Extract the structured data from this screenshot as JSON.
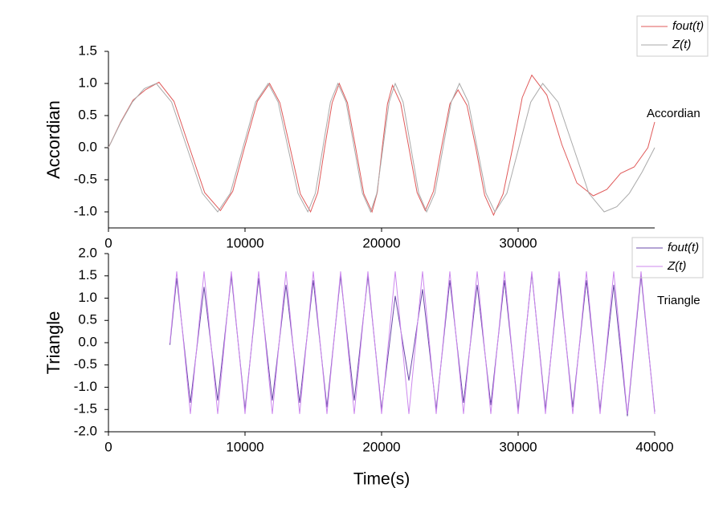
{
  "chart_data": [
    {
      "type": "line",
      "y_label": "Accordian",
      "annotation": "Accordian",
      "xlim": [
        0,
        40000
      ],
      "xticks": [
        0,
        10000,
        20000,
        30000
      ],
      "ylim": [
        -1.25,
        1.5
      ],
      "yticks": [
        {
          "value": -1,
          "label": "-1.0"
        },
        -0.5,
        {
          "value": 0,
          "label": "0.0"
        },
        0.5,
        {
          "value": 1,
          "label": "1.0"
        },
        1.5
      ],
      "series": [
        {
          "name": "fout(t)",
          "color": "#e05a5a",
          "x": [
            0,
            900,
            1800,
            2700,
            3700,
            4800,
            5900,
            7050,
            8200,
            9100,
            10000,
            10900,
            11800,
            12550,
            13300,
            14050,
            14800,
            15330,
            15850,
            16380,
            16900,
            17500,
            18100,
            18700,
            19300,
            19680,
            20050,
            20430,
            20800,
            21400,
            22000,
            22600,
            23200,
            23800,
            24400,
            25000,
            25600,
            26250,
            26900,
            27550,
            28200,
            28900,
            29600,
            30300,
            31000,
            32100,
            33200,
            34300,
            35500,
            36500,
            37500,
            38500,
            39500,
            40000
          ],
          "values": [
            0,
            0.4,
            0.74,
            0.9,
            1.02,
            0.72,
            0.02,
            -0.7,
            -0.98,
            -0.68,
            0.03,
            0.72,
            1.0,
            0.7,
            0.0,
            -0.72,
            -1.0,
            -0.7,
            0.02,
            0.7,
            1.0,
            0.7,
            0.0,
            -0.72,
            -1.0,
            -0.7,
            0.0,
            0.68,
            0.97,
            0.69,
            0.0,
            -0.7,
            -0.98,
            -0.68,
            0.02,
            0.68,
            0.9,
            0.66,
            0.0,
            -0.74,
            -1.05,
            -0.72,
            0.0,
            0.78,
            1.13,
            0.82,
            0.05,
            -0.55,
            -0.75,
            -0.65,
            -0.4,
            -0.3,
            0.0,
            0.4
          ]
        },
        {
          "name": "Z(t)",
          "color": "#aaaaaa",
          "x": [
            0,
            875,
            1750,
            2625,
            3500,
            4625,
            5750,
            6875,
            8000,
            8925,
            9850,
            10775,
            11700,
            12425,
            13150,
            13875,
            14600,
            15150,
            15700,
            16250,
            16800,
            17400,
            18000,
            18600,
            19200,
            19650,
            20100,
            20550,
            21000,
            21575,
            22150,
            22725,
            23300,
            23900,
            24500,
            25100,
            25700,
            26350,
            27000,
            27650,
            28300,
            29175,
            30050,
            30925,
            31800,
            32925,
            34050,
            35175,
            36300,
            37225,
            38150,
            39075,
            40000
          ],
          "values": [
            0,
            0.38,
            0.71,
            0.92,
            1,
            0.71,
            0,
            -0.71,
            -1,
            -0.71,
            0,
            0.71,
            1,
            0.71,
            0,
            -0.71,
            -1,
            -0.71,
            0,
            0.71,
            1,
            0.71,
            0,
            -0.71,
            -1,
            -0.71,
            0,
            0.71,
            1,
            0.71,
            0,
            -0.71,
            -1,
            -0.71,
            0,
            0.71,
            1,
            0.71,
            0,
            -0.71,
            -1,
            -0.71,
            0,
            0.71,
            1,
            0.71,
            0,
            -0.71,
            -1,
            -0.92,
            -0.71,
            -0.38,
            0
          ]
        }
      ]
    },
    {
      "type": "line",
      "y_label": "Triangle",
      "x_label": "Time(s)",
      "annotation": "Triangle",
      "xlim": [
        0,
        40000
      ],
      "xticks": [
        0,
        10000,
        20000,
        30000,
        40000
      ],
      "ylim": [
        -2,
        2
      ],
      "yticks": [
        {
          "value": -2,
          "label": "-2.0"
        },
        -1.5,
        {
          "value": -1,
          "label": "-1.0"
        },
        -0.5,
        {
          "value": 0,
          "label": "0.0"
        },
        0.5,
        {
          "value": 1,
          "label": "1.0"
        },
        1.5,
        {
          "value": 2,
          "label": "2.0"
        }
      ],
      "series": [
        {
          "name": "fout(t)",
          "color": "#6a4aa8",
          "x": [
            4500,
            5000,
            6000,
            7000,
            8000,
            9000,
            10000,
            11000,
            12000,
            13000,
            14000,
            15000,
            16000,
            17000,
            18000,
            19000,
            20000,
            21000,
            22000,
            23000,
            24000,
            25000,
            26000,
            27000,
            28000,
            29000,
            30000,
            31000,
            32000,
            33000,
            34000,
            35000,
            36000,
            37000,
            38000,
            39000,
            40000
          ],
          "values": [
            -0.05,
            1.45,
            -1.35,
            1.25,
            -1.3,
            1.5,
            -1.5,
            1.45,
            -1.3,
            1.3,
            -1.35,
            1.4,
            -1.45,
            1.5,
            -1.3,
            1.5,
            -1.5,
            1.05,
            -0.85,
            1.2,
            -1.5,
            1.4,
            -1.35,
            1.3,
            -1.4,
            1.4,
            -1.5,
            1.55,
            -1.5,
            1.45,
            -1.45,
            1.4,
            -1.5,
            1.3,
            -1.65,
            1.5,
            -1.55
          ]
        },
        {
          "name": "Z(t)",
          "color": "#cc88ee",
          "x": [
            4500,
            5000,
            6000,
            7000,
            8000,
            9000,
            10000,
            11000,
            12000,
            13000,
            14000,
            15000,
            16000,
            17000,
            18000,
            19000,
            20000,
            21000,
            22000,
            23000,
            24000,
            25000,
            26000,
            27000,
            28000,
            29000,
            30000,
            31000,
            32000,
            33000,
            34000,
            35000,
            36000,
            37000,
            38000,
            39000,
            40000
          ],
          "values": [
            0,
            1.6,
            -1.6,
            1.6,
            -1.6,
            1.6,
            -1.6,
            1.6,
            -1.6,
            1.6,
            -1.6,
            1.6,
            -1.6,
            1.6,
            -1.6,
            1.6,
            -1.6,
            1.6,
            -1.6,
            1.6,
            -1.6,
            1.6,
            -1.6,
            1.6,
            -1.6,
            1.6,
            -1.6,
            1.6,
            -1.6,
            1.6,
            -1.6,
            1.6,
            -1.6,
            1.6,
            -1.6,
            1.6,
            -1.6
          ]
        }
      ]
    }
  ]
}
